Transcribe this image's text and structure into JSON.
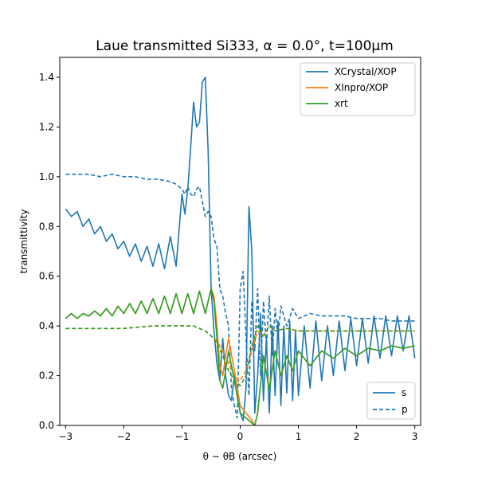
{
  "chart_data": {
    "type": "line",
    "title": "Laue transmitted Si333, α = 0.0°, t=100µm",
    "xlabel": "θ − θB (arcsec)",
    "ylabel": "transmittivity",
    "xlim": [
      -3.1,
      3.1
    ],
    "ylim": [
      0.0,
      1.48
    ],
    "xticks": [
      -3,
      -2,
      -1,
      0,
      1,
      2,
      3
    ],
    "xtick_labels": [
      "−3",
      "−2",
      "−1",
      "0",
      "1",
      "2",
      "3"
    ],
    "yticks": [
      0.0,
      0.2,
      0.4,
      0.6,
      0.8,
      1.0,
      1.2,
      1.4
    ],
    "ytick_labels": [
      "0.0",
      "0.2",
      "0.4",
      "0.6",
      "0.8",
      "1.0",
      "1.2",
      "1.4"
    ],
    "grid": false,
    "legend_series": {
      "placement": "top-right",
      "entries": [
        {
          "name": "XCrystal/XOP",
          "color": "#1f77b4"
        },
        {
          "name": "XInpro/XOP",
          "color": "#ff7f0e"
        },
        {
          "name": "xrt",
          "color": "#2ca02c"
        }
      ]
    },
    "legend_style": {
      "placement": "bottom-right",
      "entries": [
        {
          "name": "s",
          "dash": "solid"
        },
        {
          "name": "p",
          "dash": "dashed"
        }
      ]
    },
    "series": [
      {
        "name": "XCrystal/XOP",
        "polarization": "s",
        "color": "#1f77b4",
        "dash": "solid",
        "x": [
          -3.0,
          -2.9,
          -2.8,
          -2.7,
          -2.6,
          -2.5,
          -2.4,
          -2.3,
          -2.2,
          -2.1,
          -2.0,
          -1.9,
          -1.8,
          -1.7,
          -1.6,
          -1.5,
          -1.4,
          -1.3,
          -1.2,
          -1.1,
          -1.0,
          -0.95,
          -0.9,
          -0.85,
          -0.8,
          -0.75,
          -0.7,
          -0.65,
          -0.6,
          -0.55,
          -0.5,
          -0.45,
          -0.4,
          -0.35,
          -0.3,
          -0.25,
          -0.2,
          -0.15,
          -0.1,
          -0.05,
          0.0,
          0.05,
          0.1,
          0.15,
          0.2,
          0.25,
          0.3,
          0.35,
          0.4,
          0.45,
          0.5,
          0.55,
          0.6,
          0.65,
          0.7,
          0.75,
          0.8,
          0.85,
          0.9,
          0.95,
          1.0,
          1.1,
          1.2,
          1.3,
          1.4,
          1.5,
          1.6,
          1.7,
          1.8,
          1.9,
          2.0,
          2.1,
          2.2,
          2.3,
          2.4,
          2.5,
          2.6,
          2.7,
          2.8,
          2.9,
          3.0
        ],
        "y": [
          0.87,
          0.84,
          0.86,
          0.8,
          0.83,
          0.77,
          0.8,
          0.74,
          0.77,
          0.71,
          0.74,
          0.68,
          0.73,
          0.66,
          0.72,
          0.64,
          0.73,
          0.63,
          0.76,
          0.64,
          0.93,
          0.85,
          0.95,
          1.12,
          1.3,
          1.2,
          1.22,
          1.38,
          1.4,
          1.1,
          0.55,
          0.38,
          0.25,
          0.18,
          0.35,
          0.2,
          0.12,
          0.1,
          0.2,
          0.15,
          0.05,
          0.02,
          0.15,
          0.88,
          0.7,
          0.05,
          0.2,
          0.45,
          0.1,
          0.35,
          0.05,
          0.4,
          0.12,
          0.42,
          0.08,
          0.4,
          0.13,
          0.42,
          0.1,
          0.38,
          0.12,
          0.4,
          0.15,
          0.42,
          0.18,
          0.4,
          0.2,
          0.42,
          0.22,
          0.43,
          0.24,
          0.43,
          0.25,
          0.44,
          0.27,
          0.44,
          0.28,
          0.44,
          0.3,
          0.44,
          0.27
        ]
      },
      {
        "name": "XCrystal/XOP",
        "polarization": "p",
        "color": "#1f77b4",
        "dash": "dashed",
        "x": [
          -3.0,
          -2.8,
          -2.6,
          -2.4,
          -2.2,
          -2.0,
          -1.8,
          -1.6,
          -1.4,
          -1.2,
          -1.1,
          -1.0,
          -0.95,
          -0.9,
          -0.85,
          -0.8,
          -0.75,
          -0.7,
          -0.65,
          -0.6,
          -0.55,
          -0.5,
          -0.45,
          -0.4,
          -0.35,
          -0.3,
          -0.25,
          -0.2,
          -0.15,
          -0.1,
          -0.05,
          0.0,
          0.05,
          0.1,
          0.15,
          0.2,
          0.25,
          0.3,
          0.35,
          0.4,
          0.45,
          0.5,
          0.55,
          0.6,
          0.65,
          0.7,
          0.8,
          0.9,
          1.0,
          1.2,
          1.4,
          1.6,
          1.8,
          2.0,
          2.2,
          2.4,
          2.6,
          2.8,
          3.0
        ],
        "y": [
          1.01,
          1.01,
          1.01,
          1.0,
          1.01,
          1.0,
          1.0,
          0.99,
          0.99,
          0.98,
          0.97,
          0.95,
          0.93,
          0.96,
          0.93,
          0.92,
          0.95,
          0.96,
          0.9,
          0.84,
          0.86,
          0.84,
          0.75,
          0.72,
          0.55,
          0.52,
          0.45,
          0.4,
          0.15,
          0.08,
          0.03,
          0.55,
          0.62,
          0.35,
          0.12,
          0.5,
          0.3,
          0.55,
          0.2,
          0.5,
          0.32,
          0.52,
          0.28,
          0.47,
          0.35,
          0.48,
          0.4,
          0.47,
          0.43,
          0.45,
          0.44,
          0.44,
          0.44,
          0.43,
          0.43,
          0.43,
          0.42,
          0.42,
          0.42
        ]
      },
      {
        "name": "XInpro/XOP",
        "polarization": "s",
        "color": "#ff7f0e",
        "dash": "solid",
        "x": [
          -3.0,
          -2.9,
          -2.8,
          -2.7,
          -2.6,
          -2.5,
          -2.4,
          -2.3,
          -2.2,
          -2.1,
          -2.0,
          -1.9,
          -1.8,
          -1.7,
          -1.6,
          -1.5,
          -1.4,
          -1.3,
          -1.2,
          -1.1,
          -1.0,
          -0.9,
          -0.8,
          -0.7,
          -0.6,
          -0.5,
          -0.45,
          -0.4,
          -0.35,
          -0.3,
          -0.25,
          -0.2,
          -0.1,
          0.0,
          0.1,
          0.2,
          0.25,
          0.3,
          0.4,
          0.5,
          0.6,
          0.7,
          0.8,
          0.9,
          1.0,
          1.2,
          1.4,
          1.6,
          1.8,
          2.0,
          2.2,
          2.4,
          2.6,
          2.8,
          3.0
        ],
        "y": [
          0.43,
          0.45,
          0.43,
          0.45,
          0.44,
          0.46,
          0.44,
          0.47,
          0.44,
          0.48,
          0.45,
          0.49,
          0.45,
          0.5,
          0.45,
          0.51,
          0.45,
          0.52,
          0.45,
          0.53,
          0.45,
          0.53,
          0.45,
          0.54,
          0.45,
          0.55,
          0.52,
          0.4,
          0.24,
          0.2,
          0.28,
          0.35,
          0.22,
          0.08,
          0.05,
          0.02,
          0.0,
          0.05,
          0.28,
          0.15,
          0.3,
          0.2,
          0.28,
          0.22,
          0.3,
          0.24,
          0.3,
          0.27,
          0.31,
          0.28,
          0.31,
          0.3,
          0.32,
          0.31,
          0.32
        ]
      },
      {
        "name": "XInpro/XOP",
        "polarization": "p",
        "color": "#ff7f0e",
        "dash": "dashed",
        "x": [
          -3.0,
          -2.5,
          -2.0,
          -1.5,
          -1.0,
          -0.8,
          -0.6,
          -0.5,
          -0.4,
          -0.3,
          -0.2,
          -0.1,
          0.0,
          0.1,
          0.2,
          0.3,
          0.4,
          0.5,
          0.6,
          0.8,
          1.0,
          1.5,
          2.0,
          2.5,
          3.0
        ],
        "y": [
          0.39,
          0.39,
          0.39,
          0.4,
          0.4,
          0.4,
          0.38,
          0.36,
          0.34,
          0.3,
          0.25,
          0.2,
          0.18,
          0.22,
          0.3,
          0.38,
          0.36,
          0.4,
          0.38,
          0.39,
          0.38,
          0.38,
          0.38,
          0.38,
          0.38
        ]
      },
      {
        "name": "xrt",
        "polarization": "s",
        "color": "#2ca02c",
        "dash": "solid",
        "x": [
          -3.0,
          -2.9,
          -2.8,
          -2.7,
          -2.6,
          -2.5,
          -2.4,
          -2.3,
          -2.2,
          -2.1,
          -2.0,
          -1.9,
          -1.8,
          -1.7,
          -1.6,
          -1.5,
          -1.4,
          -1.3,
          -1.2,
          -1.1,
          -1.0,
          -0.9,
          -0.8,
          -0.7,
          -0.6,
          -0.5,
          -0.45,
          -0.4,
          -0.35,
          -0.3,
          -0.25,
          -0.2,
          -0.1,
          0.0,
          0.1,
          0.2,
          0.25,
          0.3,
          0.4,
          0.5,
          0.6,
          0.7,
          0.8,
          0.9,
          1.0,
          1.2,
          1.4,
          1.6,
          1.8,
          2.0,
          2.2,
          2.4,
          2.6,
          2.8,
          3.0
        ],
        "y": [
          0.43,
          0.45,
          0.43,
          0.45,
          0.44,
          0.46,
          0.44,
          0.47,
          0.44,
          0.48,
          0.45,
          0.49,
          0.45,
          0.5,
          0.45,
          0.51,
          0.45,
          0.52,
          0.45,
          0.53,
          0.45,
          0.53,
          0.45,
          0.54,
          0.45,
          0.55,
          0.5,
          0.35,
          0.18,
          0.15,
          0.22,
          0.3,
          0.18,
          0.05,
          0.03,
          0.01,
          0.0,
          0.05,
          0.28,
          0.14,
          0.3,
          0.2,
          0.28,
          0.22,
          0.3,
          0.24,
          0.3,
          0.27,
          0.31,
          0.28,
          0.31,
          0.3,
          0.32,
          0.31,
          0.32
        ]
      },
      {
        "name": "xrt",
        "polarization": "p",
        "color": "#2ca02c",
        "dash": "dashed",
        "x": [
          -3.0,
          -2.5,
          -2.0,
          -1.5,
          -1.0,
          -0.8,
          -0.6,
          -0.5,
          -0.4,
          -0.3,
          -0.2,
          -0.1,
          0.0,
          0.1,
          0.2,
          0.3,
          0.4,
          0.5,
          0.6,
          0.8,
          1.0,
          1.5,
          2.0,
          2.5,
          3.0
        ],
        "y": [
          0.39,
          0.39,
          0.39,
          0.4,
          0.4,
          0.4,
          0.38,
          0.36,
          0.33,
          0.28,
          0.22,
          0.18,
          0.16,
          0.2,
          0.32,
          0.4,
          0.36,
          0.4,
          0.38,
          0.39,
          0.38,
          0.38,
          0.38,
          0.38,
          0.38
        ]
      }
    ]
  }
}
